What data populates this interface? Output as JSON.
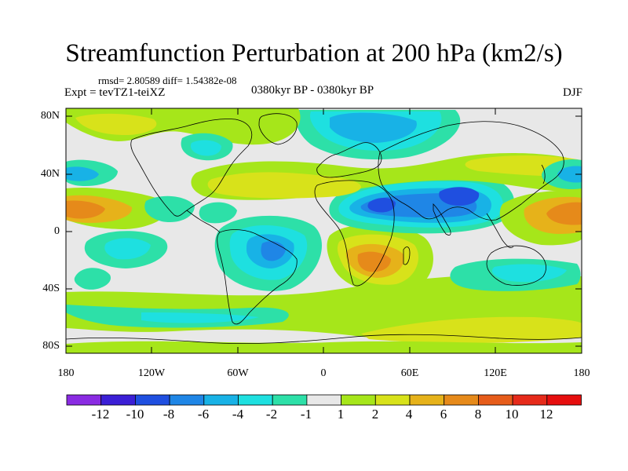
{
  "title": "Streamfunction Perturbation at 200 hPa (km2/s)",
  "stats": "rmsd= 2.80589 diff= 1.54382e-08",
  "experiment": "Expt = tevTZ1-teiXZ",
  "period": "0380kyr BP - 0380kyr BP",
  "season": "DJF",
  "y_ticks": [
    "80N",
    "40N",
    "0",
    "40S",
    "80S"
  ],
  "x_ticks": [
    "180",
    "120W",
    "60W",
    "0",
    "60E",
    "120E",
    "180"
  ],
  "colorbar": {
    "labels": [
      "-12",
      "-10",
      "-8",
      "-6",
      "-4",
      "-2",
      "-1",
      "1",
      "2",
      "4",
      "6",
      "8",
      "10",
      "12"
    ],
    "colors": [
      "#8a2be2",
      "#3b1fd6",
      "#1f4fe0",
      "#1f86e6",
      "#18b2e6",
      "#1ee0e0",
      "#2de0a8",
      "#e8e8e8",
      "#a6e61a",
      "#d8e21a",
      "#e6b21a",
      "#e68a1a",
      "#e65c1a",
      "#e62a1a",
      "#e60e0e"
    ]
  },
  "map_colors": {
    "neutral": "#e8e8e8",
    "coast": "#000000"
  }
}
